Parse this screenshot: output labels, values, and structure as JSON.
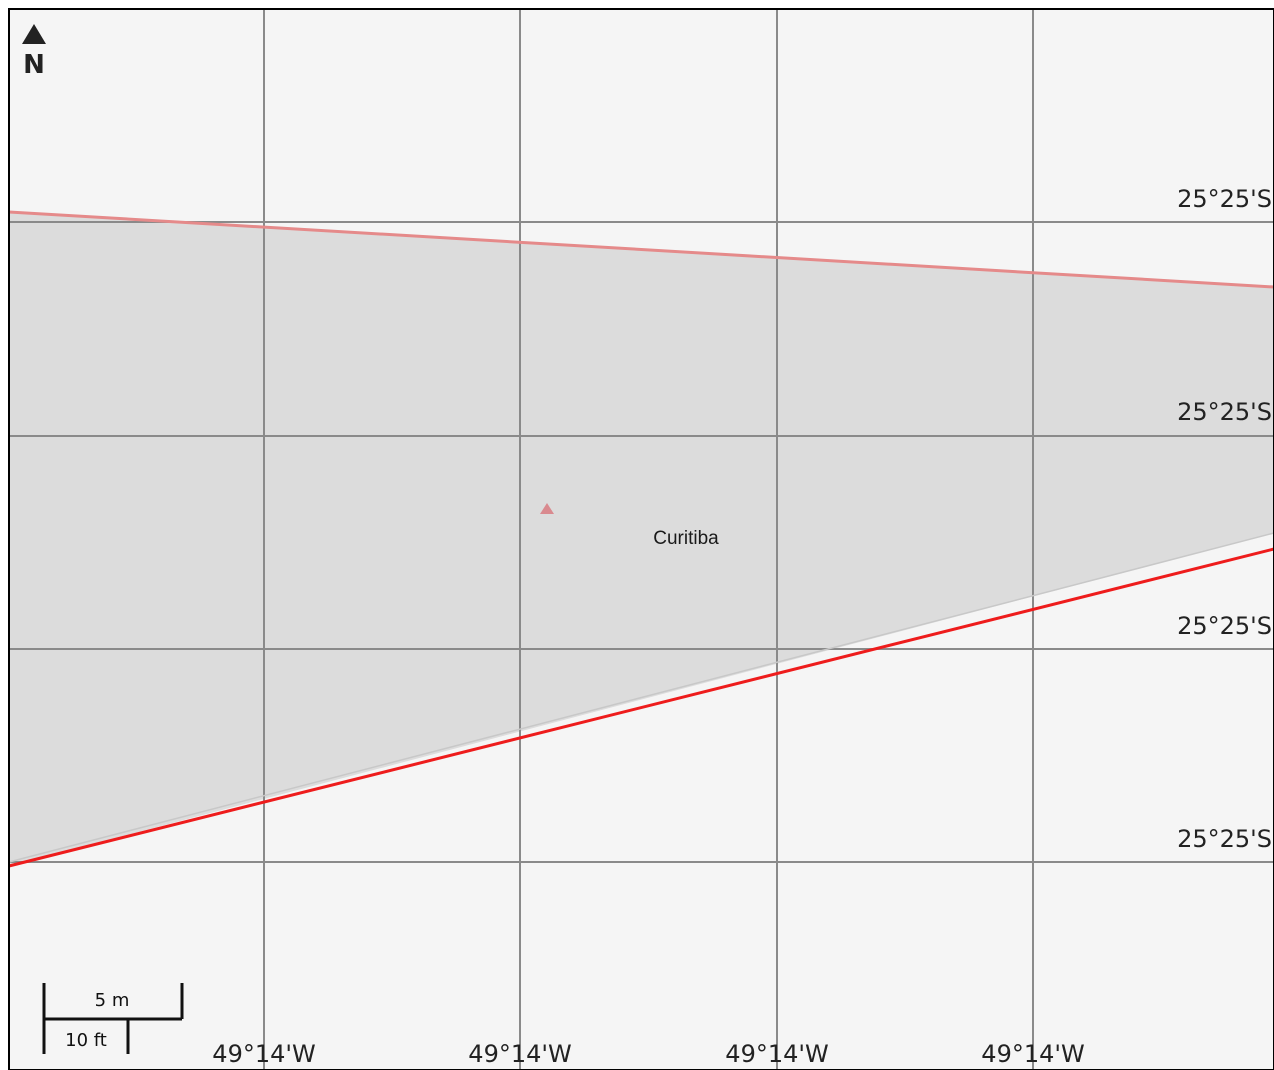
{
  "map": {
    "north_arrow": {
      "letter": "N",
      "icon": "north-arrow-icon"
    },
    "place": {
      "name": "Curitiba",
      "marker_icon": "triangle-marker-icon",
      "marker_color": "#d98a8f"
    },
    "latitude_labels": [
      "25°25'S",
      "25°25'S",
      "25°25'S",
      "25°25'S"
    ],
    "longitude_labels": [
      "49°14'W",
      "49°14'W",
      "49°14'W",
      "49°14'W"
    ],
    "scale_bar": {
      "metric_label": "5 m",
      "imperial_label": "10 ft"
    },
    "colors": {
      "background": "#f5f5f5",
      "area_fill": "#dcdcdc",
      "grid": "#8a8a8a",
      "boundary_red": "#ee1c1c",
      "boundary_pink": "#e58a8a",
      "frame": "#000000"
    }
  }
}
